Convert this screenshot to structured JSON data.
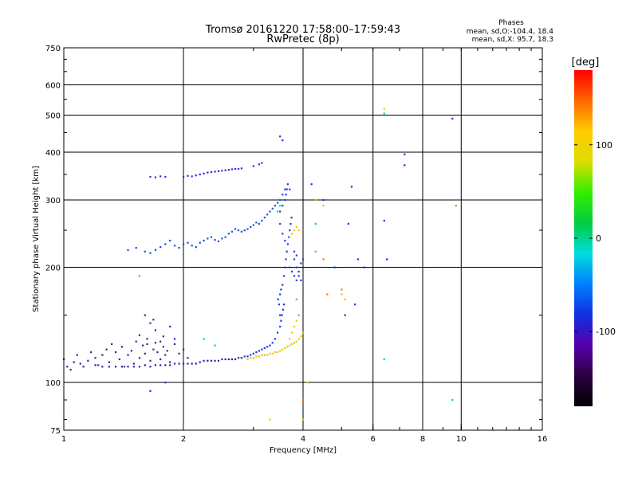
{
  "chart_data": {
    "type": "scatter",
    "title": "Tromsø 20161220 17:58:00–17:59:43",
    "subtitle": "RwPretec (8p)",
    "phases": {
      "title": "Phases",
      "line_o": "mean, sd,O:-104.4, 18.4",
      "line_x": "mean, sd,X: 95.7, 18.3"
    },
    "xlabel": "Frequency [MHz]",
    "ylabel": "Stationary phase Virtual Height [km]",
    "x_scale": "log",
    "y_scale": "log",
    "xlim": [
      1,
      16
    ],
    "ylim": [
      75,
      750
    ],
    "x_ticks": [
      {
        "value": 1,
        "label": "1"
      },
      {
        "value": 2,
        "label": "2"
      },
      {
        "value": 4,
        "label": "4"
      },
      {
        "value": 6,
        "label": "6"
      },
      {
        "value": 8,
        "label": "8"
      },
      {
        "value": 10,
        "label": "10"
      },
      {
        "value": 16,
        "label": "16"
      }
    ],
    "x_gridlines": [
      2,
      4,
      6,
      8,
      10
    ],
    "y_ticks": [
      {
        "value": 75,
        "label": "75"
      },
      {
        "value": 100,
        "label": "100"
      },
      {
        "value": 200,
        "label": "200"
      },
      {
        "value": 300,
        "label": "300"
      },
      {
        "value": 400,
        "label": "400"
      },
      {
        "value": 500,
        "label": "500"
      },
      {
        "value": 600,
        "label": "600"
      },
      {
        "value": 750,
        "label": "750"
      }
    ],
    "y_gridlines": [
      100,
      200,
      300,
      400,
      500,
      600
    ],
    "grid": true,
    "colorbar": {
      "label": "[deg]",
      "range": [
        -180,
        180
      ],
      "ticks": [
        {
          "value": 100,
          "label": "100"
        },
        {
          "value": 0,
          "label": "0"
        },
        {
          "value": -100,
          "label": "-100"
        }
      ],
      "colors": [
        "#000000",
        "#2d0040",
        "#5500aa",
        "#1030e0",
        "#0080ff",
        "#00dddd",
        "#00cc40",
        "#33ee00",
        "#dddd00",
        "#ffcc00",
        "#ff6600",
        "#ff0000"
      ]
    },
    "series": [
      {
        "color": "#4a1a9a",
        "points": [
          [
            1.0,
            115
          ],
          [
            1.02,
            110
          ],
          [
            1.04,
            108
          ],
          [
            1.06,
            113
          ],
          [
            1.08,
            118
          ],
          [
            1.1,
            112
          ],
          [
            1.12,
            110
          ],
          [
            1.15,
            114
          ],
          [
            1.17,
            120
          ],
          [
            1.2,
            116
          ],
          [
            1.22,
            111
          ],
          [
            1.25,
            118
          ],
          [
            1.28,
            122
          ],
          [
            1.3,
            113
          ],
          [
            1.32,
            126
          ],
          [
            1.35,
            120
          ],
          [
            1.38,
            115
          ],
          [
            1.4,
            124
          ],
          [
            1.42,
            110
          ],
          [
            1.45,
            118
          ],
          [
            1.48,
            121
          ],
          [
            1.5,
            112
          ],
          [
            1.52,
            128
          ],
          [
            1.55,
            116
          ],
          [
            1.58,
            125
          ],
          [
            1.6,
            119
          ],
          [
            1.62,
            130
          ],
          [
            1.65,
            114
          ],
          [
            1.68,
            122
          ],
          [
            1.7,
            127
          ],
          [
            1.72,
            120
          ],
          [
            1.75,
            115
          ],
          [
            1.78,
            124
          ],
          [
            1.8,
            118
          ],
          [
            1.82,
            121
          ],
          [
            1.85,
            113
          ],
          [
            1.9,
            126
          ],
          [
            1.95,
            119
          ],
          [
            2.0,
            122
          ],
          [
            2.05,
            116
          ],
          [
            1.6,
            150
          ],
          [
            1.65,
            143
          ],
          [
            1.7,
            137
          ],
          [
            1.75,
            128
          ],
          [
            1.55,
            133
          ],
          [
            1.62,
            126
          ],
          [
            1.68,
            146
          ],
          [
            1.78,
            132
          ]
        ]
      },
      {
        "color": "#3a1aa8",
        "points": [
          [
            1.5,
            110
          ],
          [
            1.55,
            110
          ],
          [
            1.6,
            111
          ],
          [
            1.65,
            110
          ],
          [
            1.7,
            111
          ],
          [
            1.75,
            111
          ],
          [
            1.8,
            111
          ],
          [
            1.85,
            111
          ],
          [
            1.9,
            112
          ],
          [
            1.95,
            112
          ],
          [
            2.0,
            112
          ],
          [
            2.05,
            112
          ],
          [
            2.1,
            112
          ],
          [
            2.15,
            112
          ],
          [
            2.2,
            113
          ],
          [
            2.25,
            114
          ],
          [
            2.3,
            114
          ],
          [
            2.35,
            114
          ],
          [
            2.4,
            114
          ],
          [
            2.45,
            114
          ],
          [
            2.5,
            115
          ],
          [
            2.55,
            115
          ],
          [
            2.6,
            115
          ],
          [
            2.65,
            115
          ],
          [
            2.7,
            115
          ],
          [
            2.75,
            116
          ],
          [
            2.8,
            116
          ],
          [
            1.3,
            110
          ],
          [
            1.35,
            110
          ],
          [
            1.4,
            110
          ],
          [
            1.45,
            110
          ],
          [
            1.2,
            111
          ],
          [
            1.25,
            110
          ]
        ]
      },
      {
        "color": "#1a3ae8",
        "points": [
          [
            2.8,
            116
          ],
          [
            2.85,
            117
          ],
          [
            2.9,
            117
          ],
          [
            2.95,
            118
          ],
          [
            3.0,
            119
          ],
          [
            3.05,
            120
          ],
          [
            3.1,
            121
          ],
          [
            3.15,
            122
          ],
          [
            3.2,
            123
          ],
          [
            3.25,
            124
          ],
          [
            3.3,
            125
          ],
          [
            3.35,
            127
          ],
          [
            3.4,
            130
          ],
          [
            3.45,
            135
          ],
          [
            3.5,
            140
          ],
          [
            3.52,
            145
          ],
          [
            3.54,
            150
          ],
          [
            3.56,
            155
          ],
          [
            3.58,
            160
          ],
          [
            3.5,
            150
          ],
          [
            3.48,
            160
          ],
          [
            3.46,
            165
          ],
          [
            3.5,
            170
          ],
          [
            3.52,
            175
          ],
          [
            3.55,
            180
          ],
          [
            3.58,
            190
          ],
          [
            3.6,
            200
          ],
          [
            3.62,
            210
          ],
          [
            3.64,
            220
          ],
          [
            3.66,
            230
          ],
          [
            3.68,
            240
          ],
          [
            3.7,
            250
          ],
          [
            3.72,
            260
          ],
          [
            3.74,
            270
          ],
          [
            3.5,
            280
          ],
          [
            3.55,
            290
          ],
          [
            3.6,
            300
          ],
          [
            3.62,
            310
          ],
          [
            3.64,
            320
          ],
          [
            3.66,
            330
          ],
          [
            3.7,
            320
          ],
          [
            3.5,
            260
          ],
          [
            3.55,
            245
          ],
          [
            3.6,
            235
          ],
          [
            3.8,
            210
          ],
          [
            3.85,
            200
          ],
          [
            3.9,
            195
          ],
          [
            3.95,
            205
          ],
          [
            4.0,
            210
          ],
          [
            3.8,
            220
          ],
          [
            3.85,
            215
          ],
          [
            3.9,
            190
          ],
          [
            3.95,
            185
          ],
          [
            3.7,
            200
          ],
          [
            3.75,
            195
          ],
          [
            3.8,
            190
          ],
          [
            3.85,
            185
          ]
        ]
      },
      {
        "color": "#1a50e0",
        "points": [
          [
            1.45,
            222
          ],
          [
            1.52,
            225
          ],
          [
            1.6,
            220
          ],
          [
            1.65,
            218
          ],
          [
            1.7,
            222
          ],
          [
            1.75,
            226
          ],
          [
            1.8,
            230
          ],
          [
            1.85,
            235
          ],
          [
            1.9,
            228
          ],
          [
            1.95,
            225
          ],
          [
            2.0,
            230
          ],
          [
            2.05,
            232
          ],
          [
            2.1,
            228
          ],
          [
            2.15,
            226
          ],
          [
            2.2,
            232
          ],
          [
            2.25,
            235
          ],
          [
            2.3,
            238
          ],
          [
            2.35,
            240
          ],
          [
            2.4,
            236
          ],
          [
            2.45,
            234
          ],
          [
            2.5,
            238
          ],
          [
            2.55,
            240
          ],
          [
            2.6,
            245
          ],
          [
            2.65,
            248
          ],
          [
            2.7,
            252
          ],
          [
            2.75,
            250
          ],
          [
            2.8,
            248
          ],
          [
            2.85,
            250
          ],
          [
            2.9,
            252
          ],
          [
            2.95,
            255
          ],
          [
            3.0,
            258
          ],
          [
            3.05,
            262
          ],
          [
            3.1,
            260
          ],
          [
            3.15,
            265
          ],
          [
            3.2,
            270
          ],
          [
            3.25,
            275
          ],
          [
            3.3,
            280
          ],
          [
            3.35,
            285
          ],
          [
            3.4,
            290
          ],
          [
            3.45,
            295
          ],
          [
            3.5,
            300
          ],
          [
            3.55,
            310
          ],
          [
            3.6,
            320
          ]
        ]
      },
      {
        "color": "#3a2ad8",
        "points": [
          [
            1.65,
            345
          ],
          [
            1.7,
            344
          ],
          [
            1.75,
            346
          ],
          [
            1.8,
            345
          ],
          [
            2.0,
            345
          ],
          [
            2.05,
            347
          ],
          [
            2.1,
            346
          ],
          [
            2.15,
            348
          ],
          [
            2.2,
            350
          ],
          [
            2.25,
            352
          ],
          [
            2.3,
            354
          ],
          [
            2.35,
            355
          ],
          [
            2.4,
            356
          ],
          [
            2.45,
            357
          ],
          [
            2.5,
            358
          ],
          [
            2.55,
            359
          ],
          [
            2.6,
            360
          ],
          [
            2.65,
            361
          ],
          [
            2.7,
            362
          ],
          [
            2.75,
            362
          ],
          [
            2.8,
            363
          ],
          [
            3.0,
            368
          ],
          [
            3.1,
            372
          ],
          [
            3.15,
            375
          ],
          [
            3.5,
            440
          ],
          [
            3.55,
            430
          ]
        ]
      },
      {
        "color": "#e8c800",
        "points": [
          [
            2.9,
            115
          ],
          [
            2.95,
            116
          ],
          [
            3.0,
            116
          ],
          [
            3.05,
            117
          ],
          [
            3.1,
            117
          ],
          [
            3.15,
            118
          ],
          [
            3.2,
            118
          ],
          [
            3.25,
            118
          ],
          [
            3.3,
            119
          ],
          [
            3.35,
            119
          ],
          [
            3.4,
            120
          ],
          [
            3.45,
            120
          ],
          [
            3.5,
            121
          ],
          [
            3.55,
            122
          ],
          [
            3.6,
            123
          ],
          [
            3.65,
            124
          ],
          [
            3.7,
            125
          ],
          [
            3.75,
            126
          ],
          [
            3.8,
            127
          ],
          [
            3.85,
            128
          ],
          [
            3.9,
            130
          ],
          [
            3.95,
            132
          ],
          [
            4.0,
            135
          ],
          [
            3.7,
            130
          ],
          [
            3.75,
            135
          ],
          [
            3.8,
            140
          ],
          [
            3.85,
            145
          ],
          [
            3.7,
            240
          ],
          [
            3.75,
            245
          ],
          [
            3.8,
            250
          ],
          [
            3.85,
            255
          ],
          [
            3.9,
            250
          ],
          [
            4.3,
            300
          ],
          [
            4.5,
            290
          ],
          [
            5.0,
            170
          ],
          [
            5.1,
            165
          ],
          [
            6.4,
            520
          ],
          [
            3.3,
            80
          ],
          [
            4.1,
            100
          ],
          [
            4.0,
            80
          ]
        ]
      },
      {
        "color": "#00c8d8",
        "points": [
          [
            1.55,
            190
          ],
          [
            3.45,
            280
          ],
          [
            3.5,
            290
          ],
          [
            2.25,
            130
          ],
          [
            2.4,
            125
          ],
          [
            4.3,
            260
          ],
          [
            9.5,
            90
          ],
          [
            6.4,
            115
          ],
          [
            6.4,
            505
          ]
        ]
      },
      {
        "color": "#ff7700",
        "points": [
          [
            4.3,
            220
          ],
          [
            4.5,
            210
          ],
          [
            4.6,
            170
          ],
          [
            5.0,
            175
          ],
          [
            9.7,
            290
          ],
          [
            4.0,
            90
          ],
          [
            3.85,
            165
          ],
          [
            3.9,
            150
          ]
        ]
      },
      {
        "color": "#1a2ae0",
        "points": [
          [
            4.5,
            300
          ],
          [
            4.8,
            200
          ],
          [
            5.2,
            260
          ],
          [
            5.5,
            210
          ],
          [
            5.7,
            200
          ],
          [
            6.4,
            265
          ],
          [
            6.5,
            210
          ],
          [
            7.2,
            395
          ],
          [
            7.2,
            370
          ],
          [
            9.5,
            490
          ],
          [
            5.3,
            325
          ],
          [
            4.2,
            330
          ],
          [
            1.65,
            95
          ],
          [
            1.8,
            100
          ],
          [
            1.9,
            130
          ],
          [
            1.85,
            140
          ],
          [
            5.1,
            150
          ],
          [
            5.4,
            160
          ]
        ]
      }
    ]
  }
}
